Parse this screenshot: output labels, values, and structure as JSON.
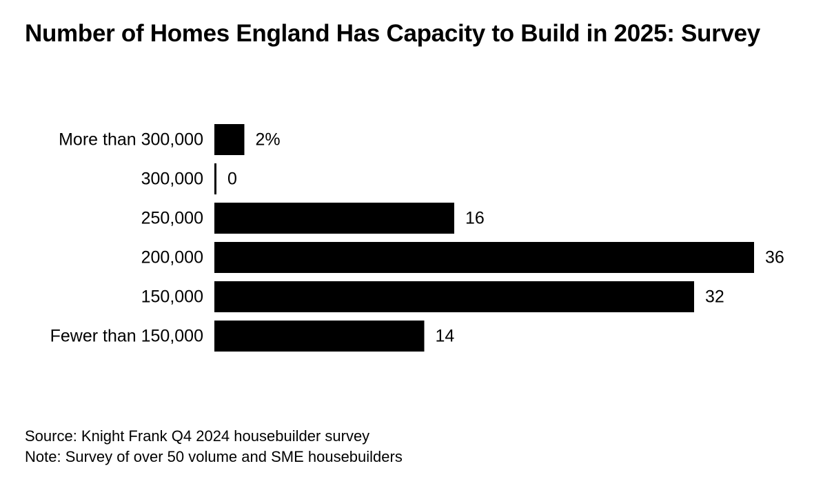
{
  "title": "Number of Homes England Has Capacity to Build in 2025: Survey",
  "chart_data": {
    "type": "bar",
    "orientation": "horizontal",
    "title": "Number of Homes England Has Capacity to Build in 2025: Survey",
    "categories": [
      "More than 300,000",
      "300,000",
      "250,000",
      "200,000",
      "150,000",
      "Fewer than 150,000"
    ],
    "values": [
      2,
      0,
      16,
      36,
      32,
      14
    ],
    "value_labels": [
      "2%",
      "0",
      "16",
      "36",
      "32",
      "14"
    ],
    "unit": "%",
    "xlim": [
      0,
      36
    ],
    "grid": false,
    "bar_color": "#000000"
  },
  "footer": {
    "source": "Source: Knight Frank Q4 2024 housebuilder survey",
    "note": "Note: Survey of over 50 volume and SME housebuilders"
  }
}
